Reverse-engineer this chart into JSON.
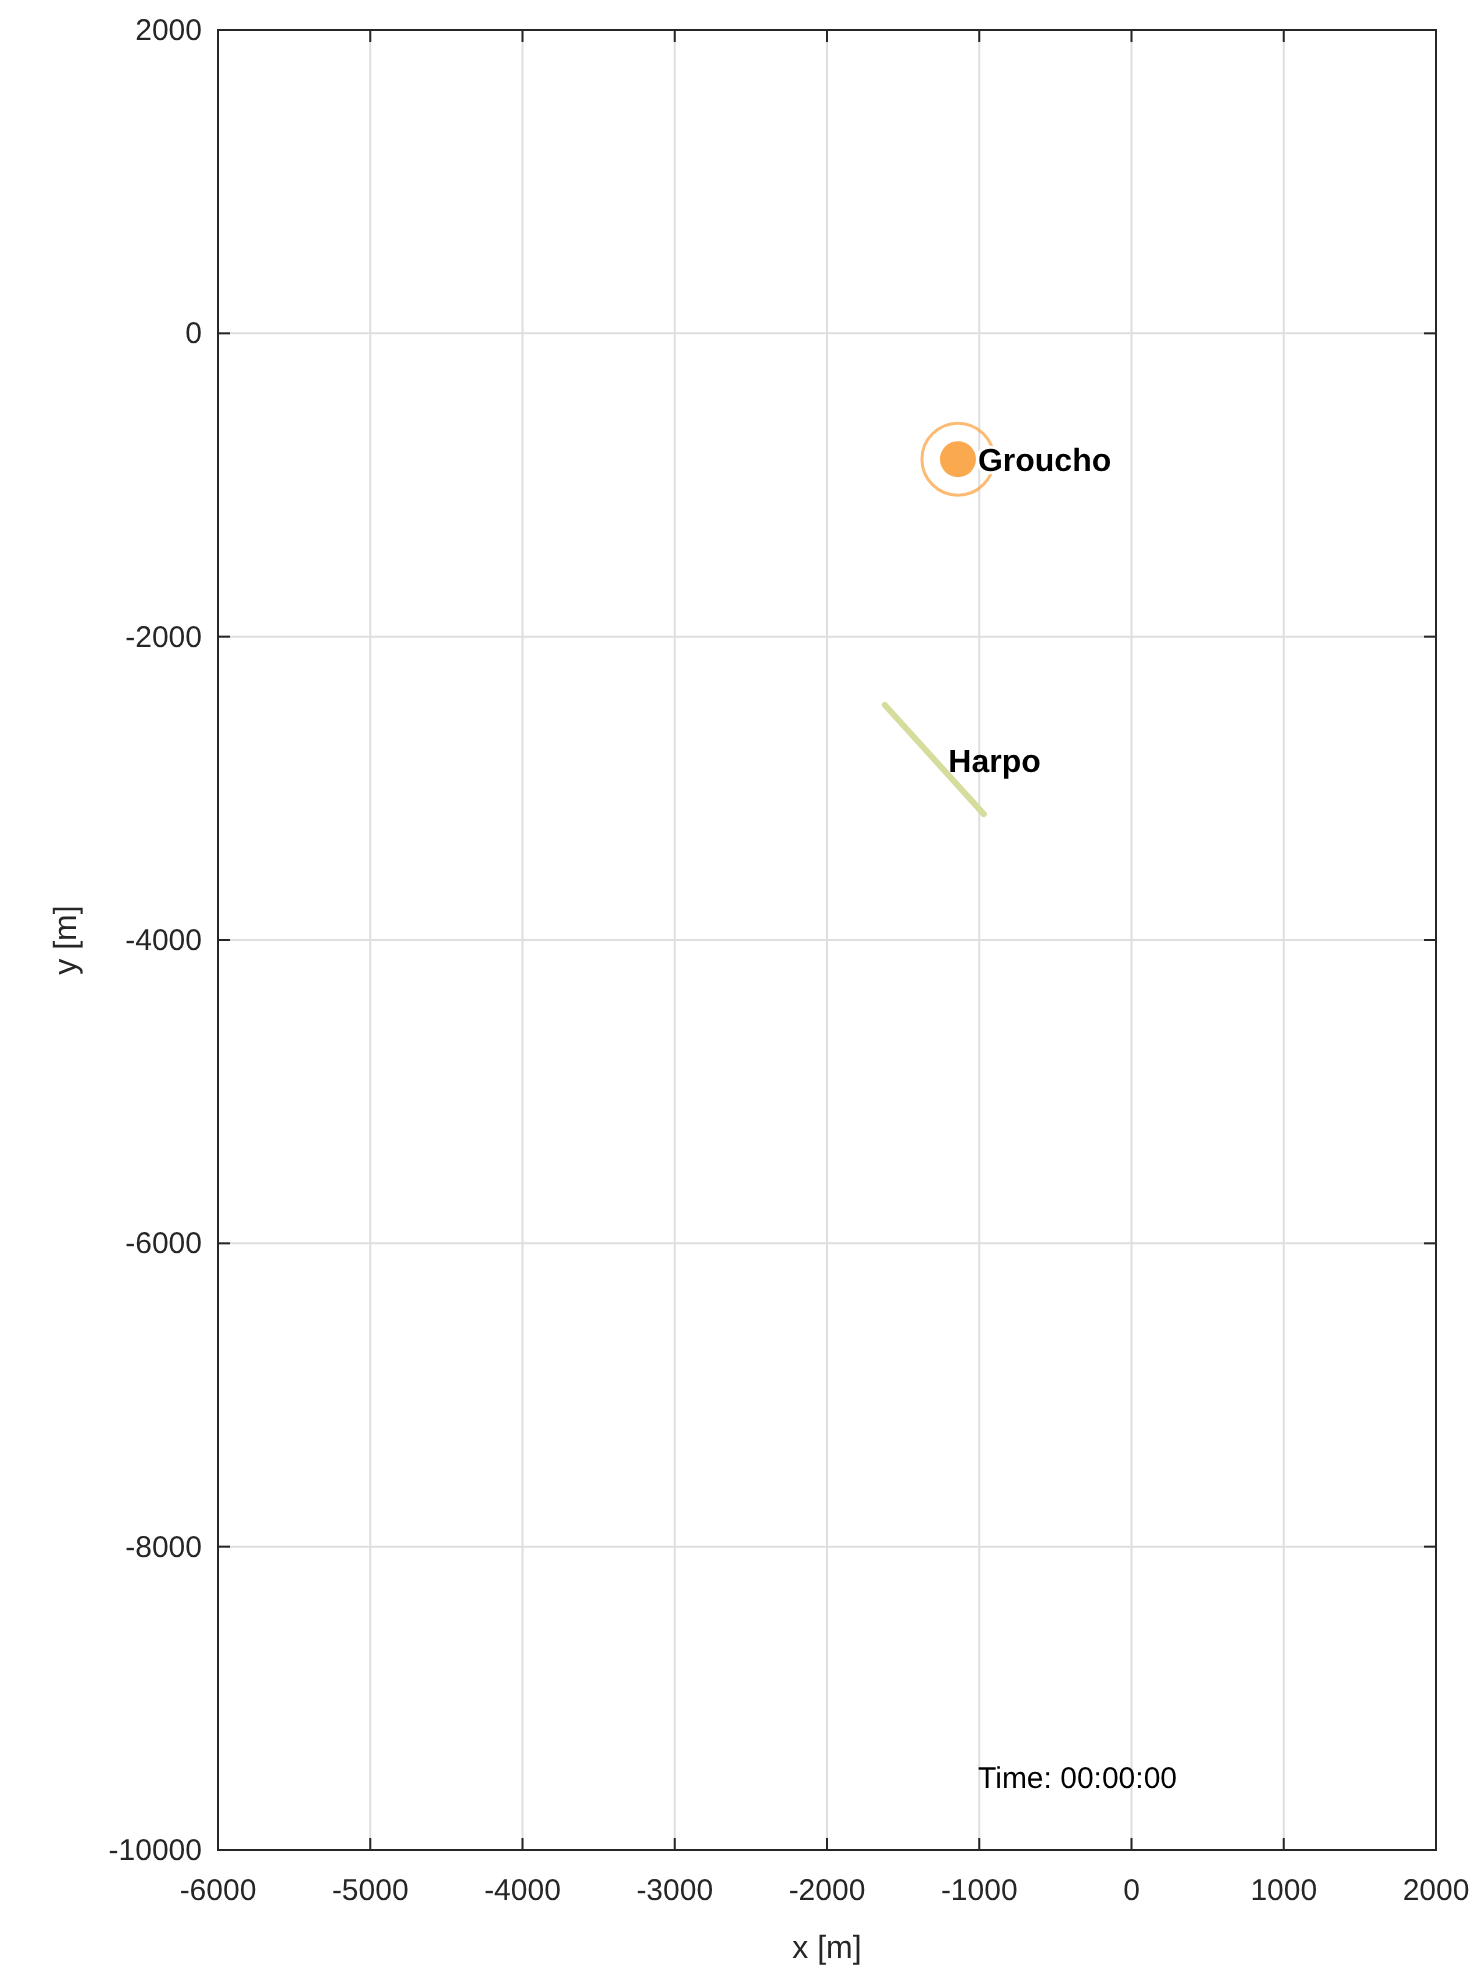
{
  "chart_data": {
    "type": "scatter",
    "xlabel": "x [m]",
    "ylabel": "y [m]",
    "xlim": [
      -6000,
      2000
    ],
    "xticks": [
      -6000,
      -5000,
      -4000,
      -3000,
      -2000,
      -1000,
      0,
      1000,
      2000
    ],
    "ylim": [
      -10000,
      2000
    ],
    "yticks": [
      -10000,
      -8000,
      -6000,
      -4000,
      -2000,
      0,
      2000
    ],
    "grid": true,
    "annotations": [
      "Time: 00:00:00"
    ],
    "series": [
      {
        "name": "Groucho",
        "marker": "circle",
        "color": "#fba94f",
        "x": [
          -1140
        ],
        "values": [
          -830
        ]
      },
      {
        "name": "Harpo",
        "type": "line",
        "color": "#d5dc9c",
        "x": [
          -1620,
          -970
        ],
        "values": [
          -2450,
          -3170
        ]
      }
    ]
  }
}
